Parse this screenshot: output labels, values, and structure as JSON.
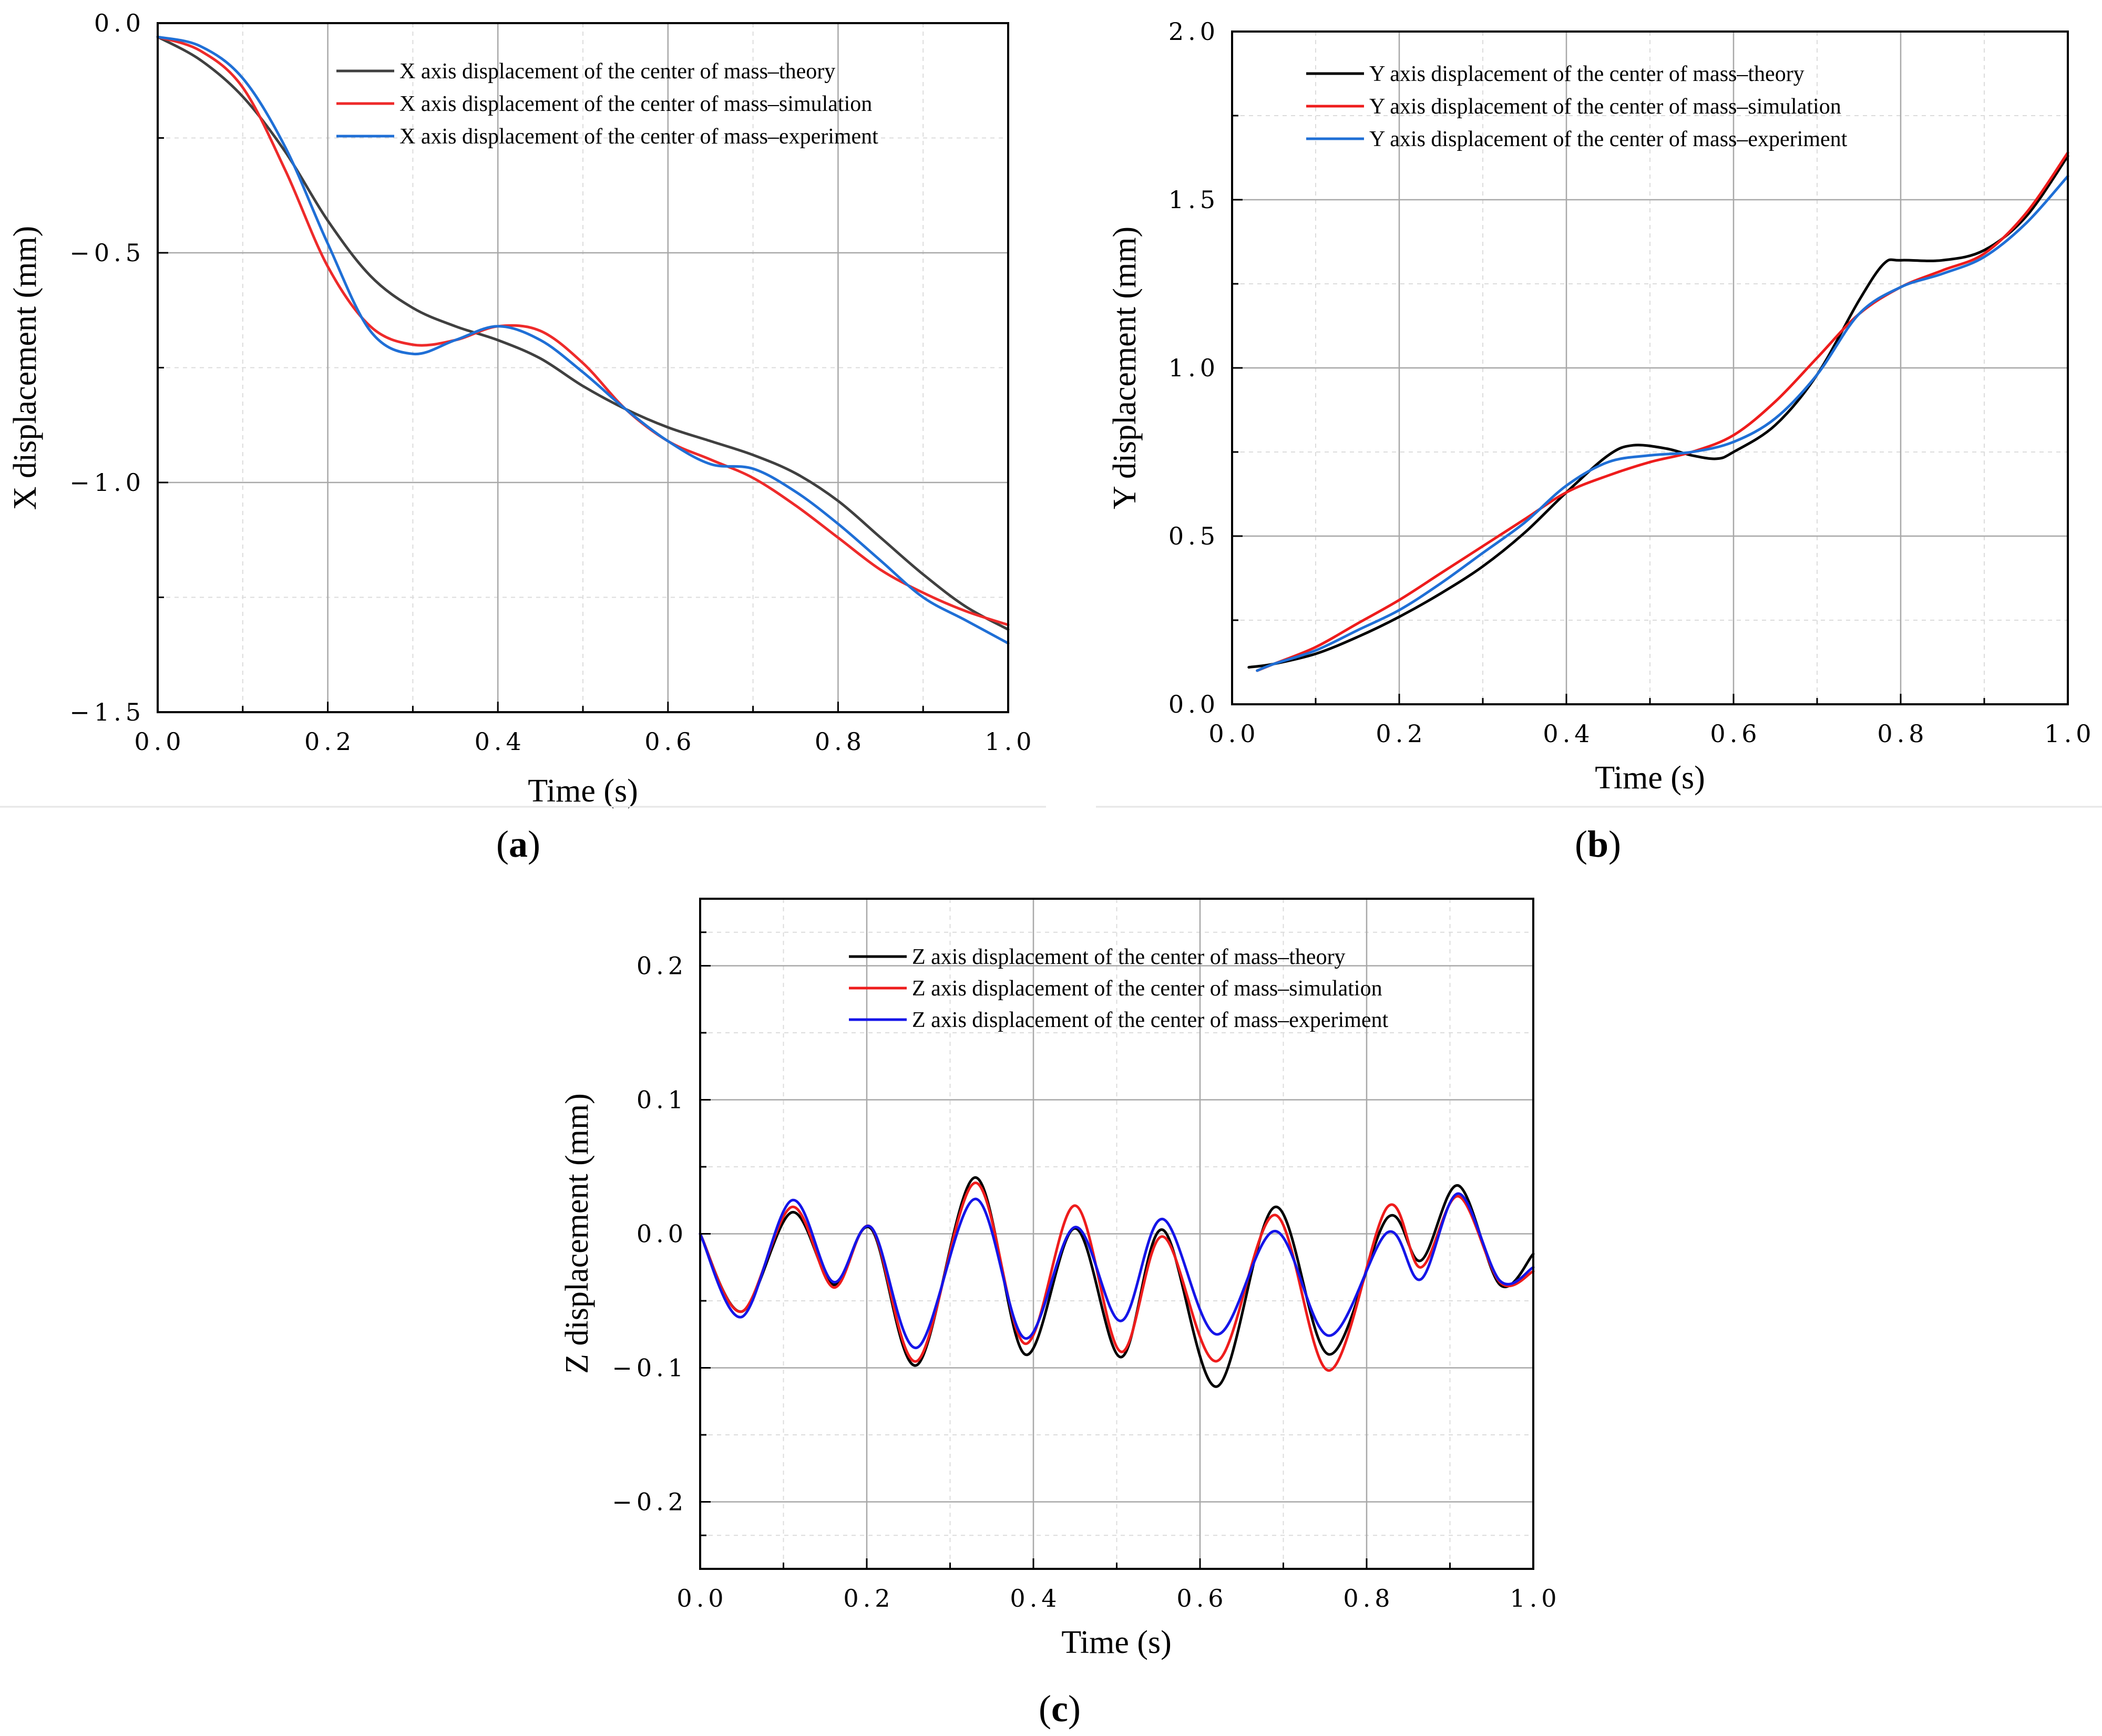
{
  "chart_data": [
    {
      "type": "line",
      "panel_label": "a",
      "xlabel": "Time (s)",
      "ylabel": "X displacement (mm)",
      "xlim": [
        0,
        1.0
      ],
      "ylim": [
        -1.5,
        0
      ],
      "xticks": [
        "0.0",
        "0.2",
        "0.4",
        "0.6",
        "0.8",
        "1.0"
      ],
      "xtick_values": [
        0,
        0.2,
        0.4,
        0.6,
        0.8,
        1.0
      ],
      "yticks": [
        "0.0",
        "−0.5",
        "−1.0",
        "−1.5"
      ],
      "ytick_values": [
        0,
        -0.5,
        -1.0,
        -1.5
      ],
      "grid": true,
      "legend_position": "top-right",
      "series": [
        {
          "name": "X axis displacement of the center of mass–theory",
          "color": "#404040",
          "x": [
            0,
            0.05,
            0.1,
            0.15,
            0.2,
            0.25,
            0.3,
            0.35,
            0.4,
            0.45,
            0.5,
            0.55,
            0.6,
            0.65,
            0.7,
            0.75,
            0.8,
            0.85,
            0.9,
            0.95,
            1.0
          ],
          "y": [
            -0.03,
            -0.08,
            -0.16,
            -0.28,
            -0.43,
            -0.55,
            -0.62,
            -0.66,
            -0.69,
            -0.73,
            -0.79,
            -0.84,
            -0.88,
            -0.91,
            -0.94,
            -0.98,
            -1.04,
            -1.12,
            -1.2,
            -1.27,
            -1.32
          ]
        },
        {
          "name": "X axis displacement of the center of mass–simulation",
          "color": "#ee2a2a",
          "x": [
            0,
            0.05,
            0.1,
            0.15,
            0.2,
            0.25,
            0.3,
            0.35,
            0.4,
            0.45,
            0.5,
            0.55,
            0.6,
            0.65,
            0.7,
            0.75,
            0.8,
            0.85,
            0.9,
            0.95,
            1.0
          ],
          "y": [
            -0.03,
            -0.06,
            -0.14,
            -0.32,
            -0.53,
            -0.66,
            -0.7,
            -0.69,
            -0.66,
            -0.67,
            -0.74,
            -0.84,
            -0.91,
            -0.95,
            -0.99,
            -1.05,
            -1.12,
            -1.19,
            -1.24,
            -1.28,
            -1.31
          ]
        },
        {
          "name": "X axis displacement of the center of mass–experiment",
          "color": "#1f6fd6",
          "x": [
            0,
            0.05,
            0.1,
            0.15,
            0.2,
            0.25,
            0.3,
            0.35,
            0.4,
            0.45,
            0.5,
            0.55,
            0.6,
            0.65,
            0.7,
            0.75,
            0.8,
            0.85,
            0.9,
            0.95,
            1.0
          ],
          "y": [
            -0.03,
            -0.05,
            -0.12,
            -0.27,
            -0.48,
            -0.67,
            -0.72,
            -0.69,
            -0.66,
            -0.69,
            -0.76,
            -0.84,
            -0.91,
            -0.96,
            -0.97,
            -1.02,
            -1.09,
            -1.17,
            -1.25,
            -1.3,
            -1.35
          ]
        }
      ]
    },
    {
      "type": "line",
      "panel_label": "b",
      "xlabel": "Time (s)",
      "ylabel": "Y displacement (mm)",
      "xlim": [
        0,
        1.0
      ],
      "ylim": [
        0,
        2.0
      ],
      "xticks": [
        "0.0",
        "0.2",
        "0.4",
        "0.6",
        "0.8",
        "1.0"
      ],
      "xtick_values": [
        0,
        0.2,
        0.4,
        0.6,
        0.8,
        1.0
      ],
      "yticks": [
        "0.0",
        "0.5",
        "1.0",
        "1.5",
        "2.0"
      ],
      "ytick_values": [
        0,
        0.5,
        1.0,
        1.5,
        2.0
      ],
      "grid": true,
      "legend_position": "top-left",
      "series": [
        {
          "name": "Y axis displacement of the center of mass–theory",
          "color": "#000000",
          "x": [
            0.02,
            0.05,
            0.1,
            0.15,
            0.2,
            0.25,
            0.3,
            0.35,
            0.4,
            0.45,
            0.48,
            0.52,
            0.55,
            0.58,
            0.6,
            0.65,
            0.7,
            0.75,
            0.78,
            0.8,
            0.85,
            0.9,
            0.95,
            1.0
          ],
          "y": [
            0.11,
            0.12,
            0.15,
            0.2,
            0.26,
            0.33,
            0.41,
            0.51,
            0.63,
            0.74,
            0.77,
            0.76,
            0.74,
            0.73,
            0.75,
            0.83,
            0.98,
            1.2,
            1.31,
            1.32,
            1.32,
            1.35,
            1.45,
            1.63
          ]
        },
        {
          "name": "Y axis displacement of the center of mass–simulation",
          "color": "#ee1c1c",
          "x": [
            0.03,
            0.05,
            0.1,
            0.15,
            0.2,
            0.25,
            0.3,
            0.35,
            0.4,
            0.45,
            0.5,
            0.55,
            0.6,
            0.65,
            0.7,
            0.75,
            0.8,
            0.85,
            0.9,
            0.95,
            1.0
          ],
          "y": [
            0.1,
            0.12,
            0.17,
            0.24,
            0.31,
            0.39,
            0.47,
            0.55,
            0.63,
            0.68,
            0.72,
            0.75,
            0.8,
            0.9,
            1.03,
            1.16,
            1.24,
            1.29,
            1.34,
            1.46,
            1.64
          ]
        },
        {
          "name": "Y axis displacement of the center of mass–experiment",
          "color": "#1f6fd6",
          "x": [
            0.03,
            0.05,
            0.1,
            0.15,
            0.2,
            0.25,
            0.3,
            0.35,
            0.4,
            0.45,
            0.5,
            0.55,
            0.6,
            0.65,
            0.7,
            0.75,
            0.8,
            0.85,
            0.9,
            0.95,
            1.0
          ],
          "y": [
            0.1,
            0.12,
            0.16,
            0.22,
            0.28,
            0.36,
            0.45,
            0.54,
            0.65,
            0.72,
            0.74,
            0.75,
            0.78,
            0.85,
            0.98,
            1.16,
            1.24,
            1.28,
            1.33,
            1.43,
            1.57
          ]
        }
      ]
    },
    {
      "type": "line",
      "panel_label": "c",
      "xlabel": "Time (s)",
      "ylabel": "Z displacement (mm)",
      "xlim": [
        0,
        1.0
      ],
      "ylim": [
        -0.25,
        0.25
      ],
      "xticks": [
        "0.0",
        "0.2",
        "0.4",
        "0.6",
        "0.8",
        "1.0"
      ],
      "xtick_values": [
        0,
        0.2,
        0.4,
        0.6,
        0.8,
        1.0
      ],
      "yticks": [
        "0.2",
        "0.1",
        "0.0",
        "−0.1",
        "−0.2"
      ],
      "ytick_values": [
        0.2,
        0.1,
        0,
        -0.1,
        -0.2
      ],
      "grid": true,
      "legend_position": "top-center",
      "series": [
        {
          "name": "Z axis displacement of the center of mass–theory",
          "color": "#000000",
          "x": [
            0,
            0.05,
            0.11,
            0.16,
            0.205,
            0.26,
            0.33,
            0.39,
            0.45,
            0.505,
            0.555,
            0.62,
            0.69,
            0.755,
            0.825,
            0.865,
            0.91,
            0.96,
            1.0
          ],
          "y": [
            0,
            -0.058,
            0.016,
            -0.038,
            0.004,
            -0.098,
            0.042,
            -0.09,
            0.004,
            -0.092,
            0.003,
            -0.114,
            0.02,
            -0.09,
            0.012,
            -0.02,
            0.036,
            -0.038,
            -0.015
          ]
        },
        {
          "name": "Z axis displacement of the center of mass–simulation",
          "color": "#ee1c1c",
          "x": [
            0,
            0.05,
            0.11,
            0.16,
            0.205,
            0.26,
            0.33,
            0.39,
            0.45,
            0.505,
            0.555,
            0.62,
            0.69,
            0.755,
            0.825,
            0.865,
            0.91,
            0.96,
            1.0
          ],
          "y": [
            0,
            -0.058,
            0.02,
            -0.04,
            0.005,
            -0.095,
            0.038,
            -0.082,
            0.021,
            -0.088,
            -0.002,
            -0.095,
            0.014,
            -0.102,
            0.02,
            -0.025,
            0.028,
            -0.036,
            -0.028
          ]
        },
        {
          "name": "Z axis displacement of the center of mass–experiment",
          "color": "#1515e8",
          "x": [
            0,
            0.05,
            0.11,
            0.16,
            0.205,
            0.26,
            0.33,
            0.39,
            0.45,
            0.505,
            0.555,
            0.62,
            0.69,
            0.755,
            0.825,
            0.865,
            0.91,
            0.96,
            1.0
          ],
          "y": [
            0,
            -0.062,
            0.025,
            -0.036,
            0.005,
            -0.085,
            0.026,
            -0.078,
            0.005,
            -0.065,
            0.011,
            -0.075,
            0.002,
            -0.076,
            0.001,
            -0.034,
            0.03,
            -0.035,
            -0.025
          ]
        }
      ]
    }
  ]
}
